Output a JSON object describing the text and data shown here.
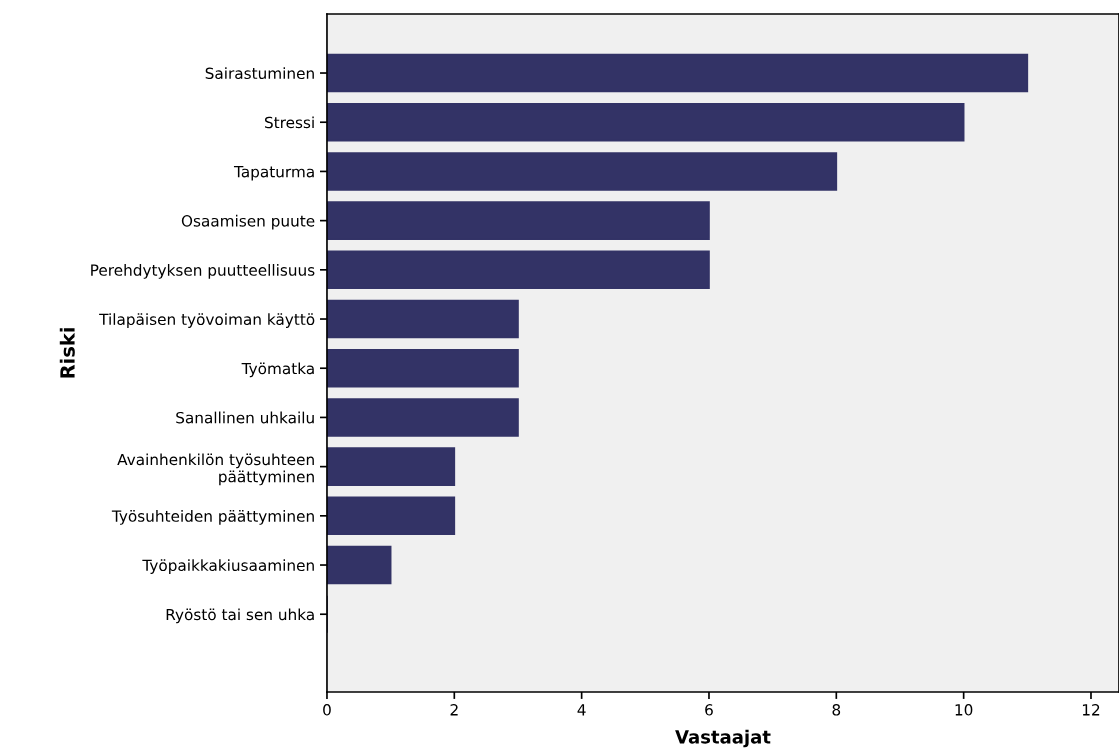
{
  "chart_data": {
    "type": "bar",
    "orientation": "horizontal",
    "xlabel": "Vastaajat",
    "ylabel": "Riski",
    "categories": [
      "Sairastuminen",
      "Stressi",
      "Tapaturma",
      "Osaamisen puute",
      "Perehdytyksen puutteellisuus",
      "Tilapäisen työvoiman käyttö",
      "Työmatka",
      "Sanallinen uhkailu",
      "Avainhenkilön työsuhteen\npäättyminen",
      "Työsuhteiden päättyminen",
      "Työpaikkakiusaaminen",
      "Ryöstö tai sen uhka"
    ],
    "values": [
      11,
      10,
      8,
      6,
      6,
      3,
      3,
      3,
      2,
      2,
      1,
      0
    ],
    "color": "#333366",
    "xlim": [
      0,
      12.44
    ],
    "xticks": [
      0,
      2,
      4,
      6,
      8,
      10,
      12
    ],
    "grid": false
  }
}
